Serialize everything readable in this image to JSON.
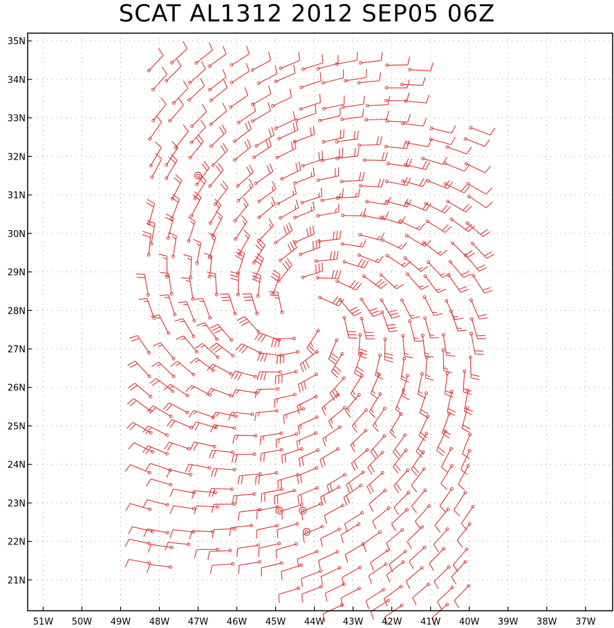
{
  "title": "SCAT AL1312 2012 SEP05 06Z",
  "chart_data": {
    "type": "scatter",
    "title": "SCAT AL1312 2012 SEP05 06Z",
    "subtype": "wind barb map",
    "xlabel": "",
    "ylabel": "",
    "xlim": [
      -51.4,
      -36.3
    ],
    "ylim": [
      20.2,
      35.2
    ],
    "grid": true,
    "barb_color": "#e03c3c",
    "x_tick_labels": [
      "51W",
      "50W",
      "49W",
      "48W",
      "47W",
      "46W",
      "45W",
      "44W",
      "43W",
      "42W",
      "41W",
      "40W",
      "39W",
      "38W",
      "37W"
    ],
    "x_tick_values": [
      -51,
      -50,
      -49,
      -48,
      -47,
      -46,
      -45,
      -44,
      -43,
      -42,
      -41,
      -40,
      -39,
      -38,
      -37
    ],
    "y_tick_labels": [
      "21N",
      "22N",
      "23N",
      "24N",
      "25N",
      "26N",
      "27N",
      "28N",
      "29N",
      "30N",
      "31N",
      "32N",
      "33N",
      "34N",
      "35N"
    ],
    "y_tick_values": [
      21,
      22,
      23,
      24,
      25,
      26,
      27,
      28,
      29,
      30,
      31,
      32,
      33,
      34,
      35
    ],
    "calm_points": [
      {
        "lon": -47.0,
        "lat": 31.5
      },
      {
        "lon": -44.9,
        "lat": 22.8
      },
      {
        "lon": -44.3,
        "lat": 22.8
      },
      {
        "lon": -44.2,
        "lat": 22.25
      }
    ],
    "swaths": [
      {
        "lon_min": -48.3,
        "lon_max": -44.8,
        "lat_min": 21.3,
        "lat_max": 34.8
      },
      {
        "lon_min": -45.0,
        "lon_max": -41.2,
        "lat_min": 20.3,
        "lat_max": 34.8
      },
      {
        "lon_min": -43.0,
        "lon_max": -39.6,
        "lat_min": 20.3,
        "lat_max": 32.8
      }
    ],
    "storm_center": {
      "lon": -44.3,
      "lat": 27.9
    }
  }
}
